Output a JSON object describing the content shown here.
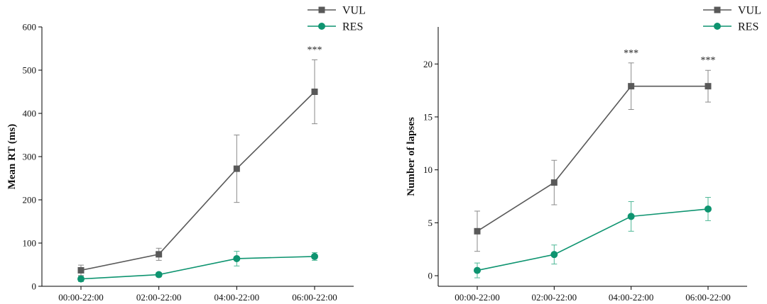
{
  "chart_data": [
    {
      "type": "line",
      "categories": [
        "00:00-22:00",
        "02:00-22:00",
        "04:00-22:00",
        "06:00-22:00"
      ],
      "ylabel": "Mean RT (ms)",
      "ylim": [
        0,
        600
      ],
      "yticks": [
        0,
        100,
        200,
        300,
        400,
        500,
        600
      ],
      "legend": "top-right",
      "series": [
        {
          "name": "VUL",
          "color": "#595959",
          "marker": "square",
          "values": [
            37,
            74,
            272,
            450
          ],
          "errors": [
            12,
            14,
            78,
            74
          ]
        },
        {
          "name": "RES",
          "color": "#0e9470",
          "marker": "circle",
          "values": [
            17,
            27,
            64,
            69
          ],
          "errors": [
            6,
            5,
            17,
            9
          ]
        }
      ],
      "annotations": [
        {
          "category": "06:00-22:00",
          "text": "***"
        }
      ]
    },
    {
      "type": "line",
      "categories": [
        "00:00-22:00",
        "02:00-22:00",
        "04:00-22:00",
        "06:00-22:00"
      ],
      "ylabel": "Number of lapses",
      "ylim": [
        -1,
        23.5
      ],
      "yticks": [
        0,
        5,
        10,
        15,
        20
      ],
      "legend": "top-right",
      "series": [
        {
          "name": "VUL",
          "color": "#595959",
          "marker": "square",
          "values": [
            4.2,
            8.8,
            17.9,
            17.9
          ],
          "errors": [
            1.9,
            2.1,
            2.2,
            1.5
          ]
        },
        {
          "name": "RES",
          "color": "#0e9470",
          "marker": "circle",
          "values": [
            0.5,
            2.0,
            5.6,
            6.3
          ],
          "errors": [
            0.7,
            0.9,
            1.4,
            1.1
          ]
        }
      ],
      "annotations": [
        {
          "category": "04:00-22:00",
          "text": "***"
        },
        {
          "category": "06:00-22:00",
          "text": "***"
        }
      ]
    }
  ]
}
